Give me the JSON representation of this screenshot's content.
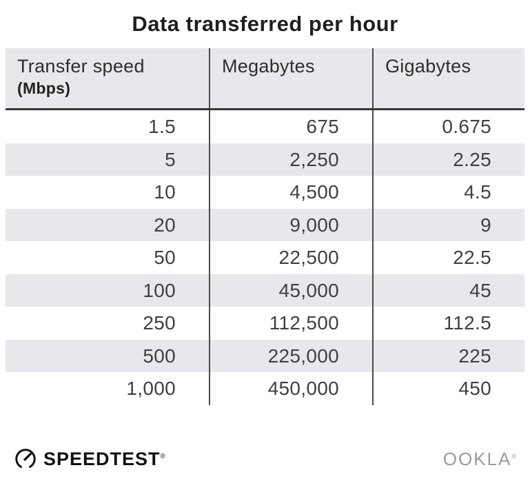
{
  "title": "Data transferred per hour",
  "table": {
    "columns": [
      {
        "label": "Transfer speed",
        "sublabel": "(Mbps)"
      },
      {
        "label": "Megabytes"
      },
      {
        "label": "Gigabytes"
      }
    ],
    "rows": [
      [
        "1.5",
        "675",
        "0.675"
      ],
      [
        "5",
        "2,250",
        "2.25"
      ],
      [
        "10",
        "4,500",
        "4.5"
      ],
      [
        "20",
        "9,000",
        "9"
      ],
      [
        "50",
        "22,500",
        "22.5"
      ],
      [
        "100",
        "45,000",
        "45"
      ],
      [
        "250",
        "112,500",
        "112.5"
      ],
      [
        "500",
        "225,000",
        "225"
      ],
      [
        "1,000",
        "450,000",
        "450"
      ]
    ]
  },
  "footer": {
    "speedtest_label": "SPEEDTEST",
    "speedtest_reg": "®",
    "ookla_label": "OOKLA",
    "ookla_reg": "®"
  },
  "colors": {
    "row_alt_bg": "#e8e7ec",
    "header_bg": "#e8e7ec",
    "divider": "#4a4a4a",
    "header_border": "#363636",
    "body_text": "#404040",
    "title_text": "#1f1f1f",
    "ookla_gray": "#9b9b9b",
    "speedtest_black": "#111111"
  },
  "chart_data": {
    "type": "table",
    "title": "Data transferred per hour",
    "columns": [
      "Transfer speed (Mbps)",
      "Megabytes",
      "Gigabytes"
    ],
    "rows": [
      [
        1.5,
        675,
        0.675
      ],
      [
        5,
        2250,
        2.25
      ],
      [
        10,
        4500,
        4.5
      ],
      [
        20,
        9000,
        9
      ],
      [
        50,
        22500,
        22.5
      ],
      [
        100,
        45000,
        45
      ],
      [
        250,
        112500,
        112.5
      ],
      [
        500,
        225000,
        225
      ],
      [
        1000,
        450000,
        450
      ]
    ],
    "layout": {
      "grid": "vertical column dividers + header underline",
      "row_striping": "even rows shaded light gray",
      "number_alignment": "right"
    }
  }
}
